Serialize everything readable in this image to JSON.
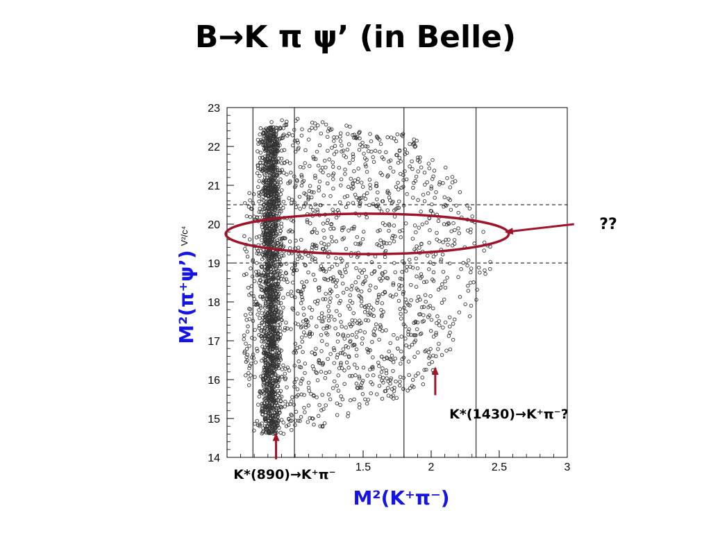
{
  "slide": {
    "title": "B→K π ψ’ (in Belle)"
  },
  "colors": {
    "annotation": "#a0142a",
    "axis_label": "#1414e6",
    "points": "#333333"
  },
  "chart_data": {
    "type": "scatter",
    "xlabel": "M²(K⁺π⁻)",
    "ylabel": "M²(π⁺ψ’)",
    "y_unit": "V²/c⁴",
    "xlim": [
      0.5,
      3.0
    ],
    "ylim": [
      14,
      23
    ],
    "x_ticks": [
      {
        "value": 1.5,
        "label": "1.5"
      },
      {
        "value": 2.0,
        "label": "2"
      },
      {
        "value": 2.5,
        "label": "2.5"
      },
      {
        "value": 3.0,
        "label": "3"
      }
    ],
    "y_ticks": [
      {
        "value": 14,
        "label": "14"
      },
      {
        "value": 15,
        "label": "15"
      },
      {
        "value": 16,
        "label": "16"
      },
      {
        "value": 17,
        "label": "17"
      },
      {
        "value": 18,
        "label": "18"
      },
      {
        "value": 19,
        "label": "19"
      },
      {
        "value": 20,
        "label": "20"
      },
      {
        "value": 21,
        "label": "21"
      },
      {
        "value": 22,
        "label": "22"
      },
      {
        "value": 23,
        "label": "23"
      }
    ],
    "vertical_lines": [
      0.69,
      0.995,
      1.8,
      2.33
    ],
    "horizontal_dashed_lines": [
      19.0,
      20.5
    ],
    "ellipse": {
      "x_center": 1.53,
      "y_center": 19.75,
      "x_halfwidth": 1.04,
      "y_halfwidth": 0.52
    },
    "annotations": [
      {
        "text": "??",
        "arrow_from": [
          3.05,
          20.0
        ],
        "arrow_to": [
          2.55,
          19.8
        ]
      },
      {
        "text": "K*(1430)→K⁺π⁻?",
        "arrow_from": [
          2.03,
          15.6
        ],
        "arrow_to": [
          2.03,
          16.3
        ]
      },
      {
        "text": "K*(890)→K⁺π⁻",
        "arrow_from": [
          0.86,
          13.95
        ],
        "arrow_to": [
          0.86,
          14.6
        ]
      }
    ],
    "band": {
      "x_center": 0.82,
      "x_width": 0.035,
      "y_range": [
        14.6,
        22.5
      ]
    },
    "scatter_region": {
      "x_range": [
        0.62,
        2.45
      ],
      "y_range": [
        14.6,
        22.8
      ],
      "n_band_points": 1600,
      "n_background_points": 1500
    }
  }
}
